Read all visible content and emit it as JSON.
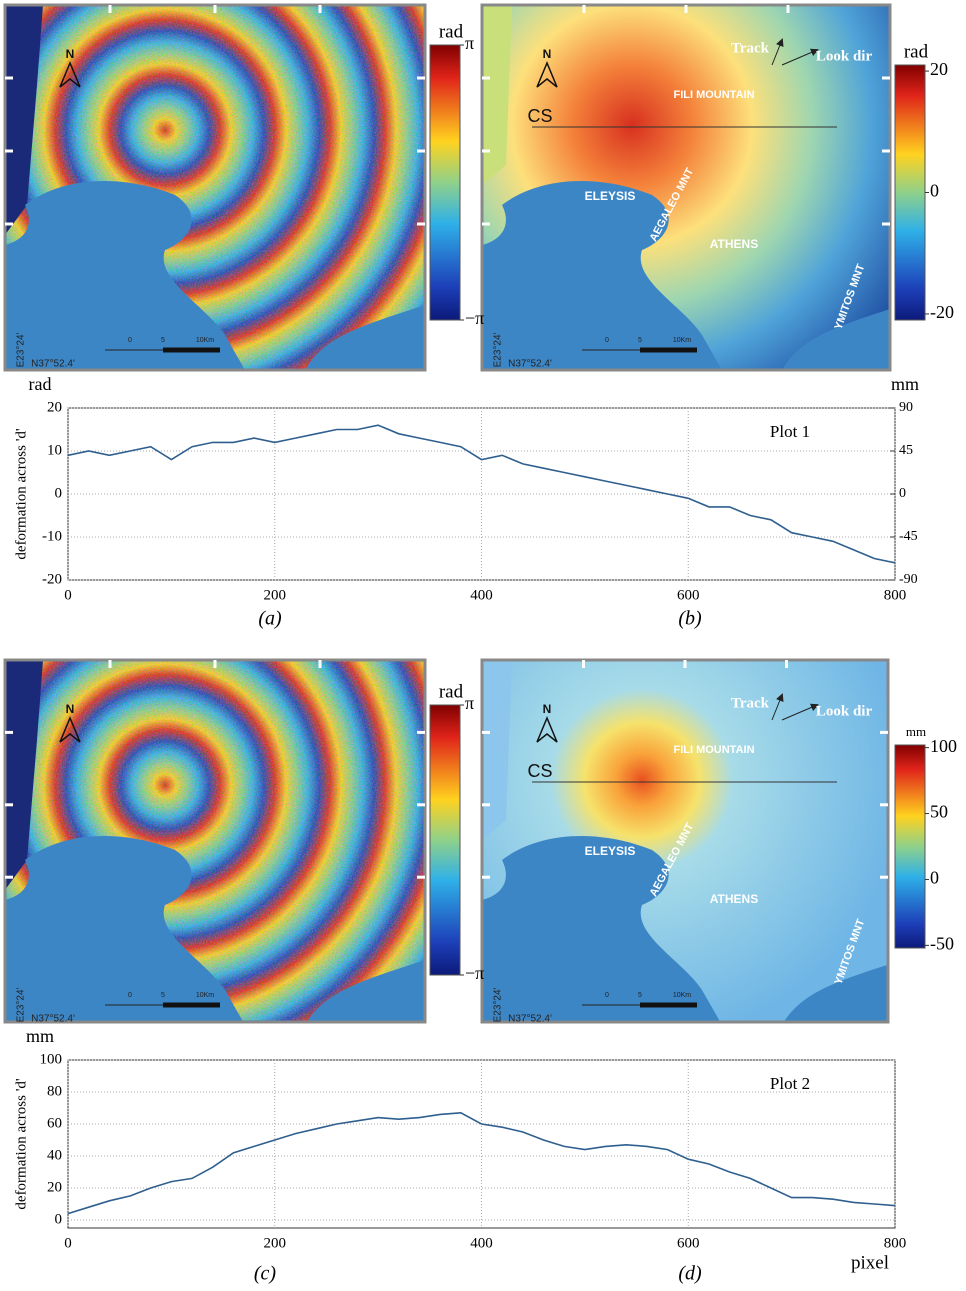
{
  "chart_data": [
    {
      "type": "line",
      "title": "Plot 1",
      "ylabel": "deformation across 'd'",
      "y_unit": "rad",
      "y2_unit": "mm",
      "x": [
        0,
        20,
        40,
        60,
        80,
        100,
        120,
        140,
        160,
        180,
        200,
        220,
        240,
        260,
        280,
        300,
        320,
        340,
        360,
        380,
        400,
        420,
        440,
        460,
        480,
        500,
        520,
        540,
        560,
        580,
        600,
        620,
        640,
        660,
        680,
        700,
        720,
        740,
        760,
        780,
        800
      ],
      "series": [
        {
          "color": "#2f5f8f",
          "values": [
            9,
            10,
            9,
            10,
            11,
            8,
            11,
            12,
            12,
            13,
            12,
            13,
            14,
            15,
            15,
            16,
            14,
            13,
            12,
            11,
            8,
            9,
            7,
            6,
            5,
            4,
            3,
            2,
            1,
            0,
            -1,
            -3,
            -3,
            -5,
            -6,
            -9,
            -10,
            -11,
            -13,
            -15,
            -16
          ]
        }
      ],
      "xlim": [
        0,
        800
      ],
      "xticks": [
        0,
        200,
        400,
        600,
        800
      ],
      "ylim": [
        -20,
        20
      ],
      "yticks": [
        -20,
        -10,
        0,
        10,
        20
      ],
      "y2lim": [
        -90,
        90
      ],
      "y2ticks": [
        -90,
        -45,
        0,
        45,
        90
      ],
      "grid": true
    },
    {
      "type": "line",
      "title": "Plot 2",
      "ylabel": "deformation across 'd'",
      "y_unit": "mm",
      "xlabel": "pixel",
      "x": [
        0,
        20,
        40,
        60,
        80,
        100,
        120,
        140,
        160,
        180,
        200,
        220,
        240,
        260,
        280,
        300,
        320,
        340,
        360,
        380,
        400,
        420,
        440,
        460,
        480,
        500,
        520,
        540,
        560,
        580,
        600,
        620,
        640,
        660,
        680,
        700,
        720,
        740,
        760,
        780,
        800
      ],
      "series": [
        {
          "color": "#2f5f8f",
          "values": [
            4,
            8,
            12,
            15,
            20,
            24,
            26,
            33,
            42,
            46,
            50,
            54,
            57,
            60,
            62,
            64,
            63,
            64,
            66,
            67,
            60,
            58,
            55,
            50,
            46,
            44,
            46,
            47,
            46,
            44,
            38,
            35,
            30,
            26,
            20,
            14,
            14,
            13,
            11,
            10,
            9
          ]
        }
      ],
      "xlim": [
        0,
        800
      ],
      "xticks": [
        0,
        200,
        400,
        600,
        800
      ],
      "ylim": [
        -5,
        100
      ],
      "yticks": [
        0,
        20,
        40,
        60,
        80,
        100
      ],
      "grid": true
    }
  ],
  "maps": [
    {
      "panel": "(a)",
      "kind": "wrapped",
      "colorbar": {
        "unit": "rad",
        "lim": [
          -3.1416,
          3.1416
        ],
        "ticks": [
          {
            "value": 3.1416,
            "label": "π"
          },
          {
            "value": -3.1416,
            "label": "−π"
          }
        ]
      },
      "labels": {
        "north": "N",
        "lon": "E23°24'",
        "lat": "N37°52.4'",
        "s0": "0",
        "s5": "5",
        "s10": "10Km"
      }
    },
    {
      "panel": "(b)",
      "kind": "unwrapped",
      "colorbar": {
        "unit": "rad",
        "lim": [
          -21,
          21
        ],
        "ticks": [
          20,
          0,
          -20
        ]
      },
      "labels": {
        "north": "N",
        "track": "Track",
        "look": "Look dir",
        "fili": "FILI MOUNTAIN",
        "cs": "CS",
        "eleysis": "ELEYSIS",
        "aegaleo": "AEGALEO MNT",
        "athens": "ATHENS",
        "ymitos": "YMITOS MNT",
        "lon": "E23°24'",
        "lat": "N37°52.4'",
        "s0": "0",
        "s5": "5",
        "s10": "10Km"
      }
    },
    {
      "panel": "(c)",
      "kind": "wrapped",
      "colorbar": {
        "unit": "rad",
        "lim": [
          -3.1416,
          3.1416
        ],
        "ticks": [
          {
            "value": 3.1416,
            "label": "π"
          },
          {
            "value": -3.1416,
            "label": "−π"
          }
        ]
      },
      "labels": {
        "north": "N",
        "lon": "E23°24'",
        "lat": "N37°52.4'",
        "s0": "0",
        "s5": "5",
        "s10": "10Km"
      }
    },
    {
      "panel": "(d)",
      "kind": "unwrapped",
      "colorbar": {
        "unit": "mm",
        "lim": [
          -52,
          102
        ],
        "ticks": [
          100,
          50,
          0,
          -50
        ]
      },
      "labels": {
        "north": "N",
        "track": "Track",
        "look": "Look dir",
        "fili": "FILI MOUNTAIN",
        "cs": "CS",
        "eleysis": "ELEYSIS",
        "aegaleo": "AEGALEO MNT",
        "athens": "ATHENS",
        "ymitos": "YMITOS MNT",
        "lon": "E23°24'",
        "lat": "N37°52.4'",
        "s0": "0",
        "s5": "5",
        "s10": "10Km"
      }
    }
  ]
}
